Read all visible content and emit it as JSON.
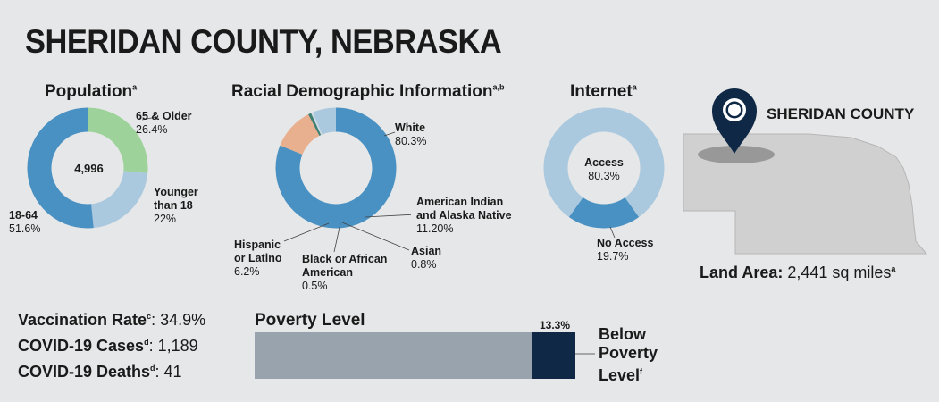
{
  "title": "SHERIDAN COUNTY, NEBRASKA",
  "colors": {
    "blue": "#4a91c3",
    "light_blue": "#aac9df",
    "green": "#9dd39a",
    "peach": "#e9b08f",
    "teal": "#3f7f72",
    "gray_bar": "#98a3ae",
    "navy": "#0f2845",
    "map_gray": "#d0d0d0"
  },
  "population": {
    "title": "Population",
    "sup": "a",
    "center": "4,996",
    "labels": {
      "older_name": "65 & Older",
      "older_value": "26.4%",
      "younger_name1": "Younger",
      "younger_name2": "than 18",
      "younger_value": "22%",
      "adult_name": "18-64",
      "adult_value": "51.6%"
    }
  },
  "race": {
    "title": "Racial Demographic Information",
    "sup": "a,b",
    "labels": {
      "white_name": "White",
      "white_value": "80.3%",
      "aian_name1": "American Indian",
      "aian_name2": "and Alaska Native",
      "aian_value": "11.20%",
      "asian_name": "Asian",
      "asian_value": "0.8%",
      "black_name1": "Black or African",
      "black_name2": "American",
      "black_value": "0.5%",
      "hisp_name1": "Hispanic",
      "hisp_name2": "or Latino",
      "hisp_value": "6.2%"
    }
  },
  "internet": {
    "title": "Internet",
    "sup": "a",
    "center_name": "Access",
    "center_value": "80.3%",
    "no_access_name": "No Access",
    "no_access_value": "19.7%"
  },
  "map": {
    "county_label": "SHERIDAN COUNTY",
    "land_area_label": "Land Area:",
    "land_area_value": " 2,441 sq miles",
    "land_area_sup": "a",
    "pin_icon": "map-pin-icon"
  },
  "stats": {
    "vacc_label": "Vaccination Rate",
    "vacc_sup": "c",
    "vacc_value": ": 34.9%",
    "cases_label": "COVID-19 Cases",
    "cases_sup": "d",
    "cases_value": ": 1,189",
    "deaths_label": "COVID-19 Deaths",
    "deaths_sup": "d",
    "deaths_value": ": 41"
  },
  "poverty": {
    "title": "Poverty Level",
    "value_label": "13.3%",
    "legend1": "Below",
    "legend2": "Poverty",
    "legend3": "Level",
    "legend_sup": "f"
  },
  "chart_data": [
    {
      "type": "pie",
      "title": "Population",
      "center_label": "4,996",
      "categories": [
        "65 & Older",
        "Younger than 18",
        "18-64"
      ],
      "values": [
        26.4,
        22,
        51.6
      ]
    },
    {
      "type": "pie",
      "title": "Racial Demographic Information",
      "categories": [
        "White",
        "American Indian and Alaska Native",
        "Asian",
        "Black or African American",
        "Hispanic or Latino"
      ],
      "values": [
        80.3,
        11.2,
        0.8,
        0.5,
        6.2
      ]
    },
    {
      "type": "pie",
      "title": "Internet",
      "categories": [
        "Access",
        "No Access"
      ],
      "values": [
        80.3,
        19.7
      ]
    },
    {
      "type": "bar",
      "title": "Poverty Level",
      "categories": [
        "Below Poverty Level"
      ],
      "values": [
        13.3
      ],
      "ylim": [
        0,
        100
      ]
    }
  ]
}
